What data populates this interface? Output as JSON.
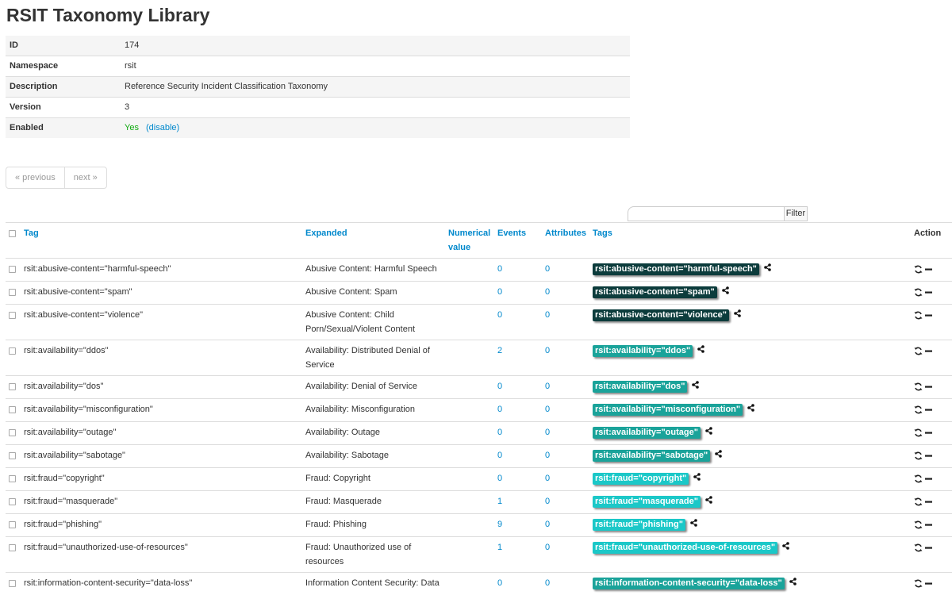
{
  "title": "RSIT Taxonomy Library",
  "details": [
    {
      "key": "ID",
      "value": "174"
    },
    {
      "key": "Namespace",
      "value": "rsit"
    },
    {
      "key": "Description",
      "value": "Reference Security Incident Classification Taxonomy"
    },
    {
      "key": "Version",
      "value": "3"
    },
    {
      "key": "Enabled",
      "value": "Yes",
      "action": "(disable)"
    }
  ],
  "pagination": {
    "previous": "« previous",
    "next": "next »"
  },
  "filter": {
    "placeholder": "",
    "button": "Filter"
  },
  "columns": {
    "tag": "Tag",
    "expanded": "Expanded",
    "numerical_value": "Numerical value",
    "events": "Events",
    "attributes": "Attributes",
    "tags": "Tags",
    "action": "Action"
  },
  "icons": {
    "share": "share-icon",
    "sync": "sync-icon",
    "remove": "minus-icon"
  },
  "rows": [
    {
      "tag": "rsit:abusive-content=\"harmful-speech\"",
      "expanded": "Abusive Content: Harmful Speech",
      "events": "0",
      "attributes": "0",
      "pill": "rsit:abusive-content=\"harmful-speech\"",
      "color": "#0c3c3c"
    },
    {
      "tag": "rsit:abusive-content=\"spam\"",
      "expanded": "Abusive Content: Spam",
      "events": "0",
      "attributes": "0",
      "pill": "rsit:abusive-content=\"spam\"",
      "color": "#0c3c3c"
    },
    {
      "tag": "rsit:abusive-content=\"violence\"",
      "expanded": "Abusive Content: Child Porn/Sexual/Violent Content",
      "events": "0",
      "attributes": "0",
      "pill": "rsit:abusive-content=\"violence\"",
      "color": "#0c3c3c"
    },
    {
      "tag": "rsit:availability=\"ddos\"",
      "expanded": "Availability: Distributed Denial of Service",
      "events": "2",
      "attributes": "0",
      "pill": "rsit:availability=\"ddos\"",
      "color": "#1aa39a"
    },
    {
      "tag": "rsit:availability=\"dos\"",
      "expanded": "Availability: Denial of Service",
      "events": "0",
      "attributes": "0",
      "pill": "rsit:availability=\"dos\"",
      "color": "#1aa39a"
    },
    {
      "tag": "rsit:availability=\"misconfiguration\"",
      "expanded": "Availability: Misconfiguration",
      "events": "0",
      "attributes": "0",
      "pill": "rsit:availability=\"misconfiguration\"",
      "color": "#1aa39a"
    },
    {
      "tag": "rsit:availability=\"outage\"",
      "expanded": "Availability: Outage",
      "events": "0",
      "attributes": "0",
      "pill": "rsit:availability=\"outage\"",
      "color": "#1aa39a"
    },
    {
      "tag": "rsit:availability=\"sabotage\"",
      "expanded": "Availability: Sabotage",
      "events": "0",
      "attributes": "0",
      "pill": "rsit:availability=\"sabotage\"",
      "color": "#1aa39a"
    },
    {
      "tag": "rsit:fraud=\"copyright\"",
      "expanded": "Fraud: Copyright",
      "events": "0",
      "attributes": "0",
      "pill": "rsit:fraud=\"copyright\"",
      "color": "#1bc8c8"
    },
    {
      "tag": "rsit:fraud=\"masquerade\"",
      "expanded": "Fraud: Masquerade",
      "events": "1",
      "attributes": "0",
      "pill": "rsit:fraud=\"masquerade\"",
      "color": "#1bc8c8"
    },
    {
      "tag": "rsit:fraud=\"phishing\"",
      "expanded": "Fraud: Phishing",
      "events": "9",
      "attributes": "0",
      "pill": "rsit:fraud=\"phishing\"",
      "color": "#1bc8c8"
    },
    {
      "tag": "rsit:fraud=\"unauthorized-use-of-resources\"",
      "expanded": "Fraud: Unauthorized use of resources",
      "events": "1",
      "attributes": "0",
      "pill": "rsit:fraud=\"unauthorized-use-of-resources\"",
      "color": "#1bc8c8"
    },
    {
      "tag": "rsit:information-content-security=\"data-loss\"",
      "expanded": "Information Content Security: Data",
      "events": "0",
      "attributes": "0",
      "pill": "rsit:information-content-security=\"data-loss\"",
      "color": "#1aa39a"
    }
  ]
}
